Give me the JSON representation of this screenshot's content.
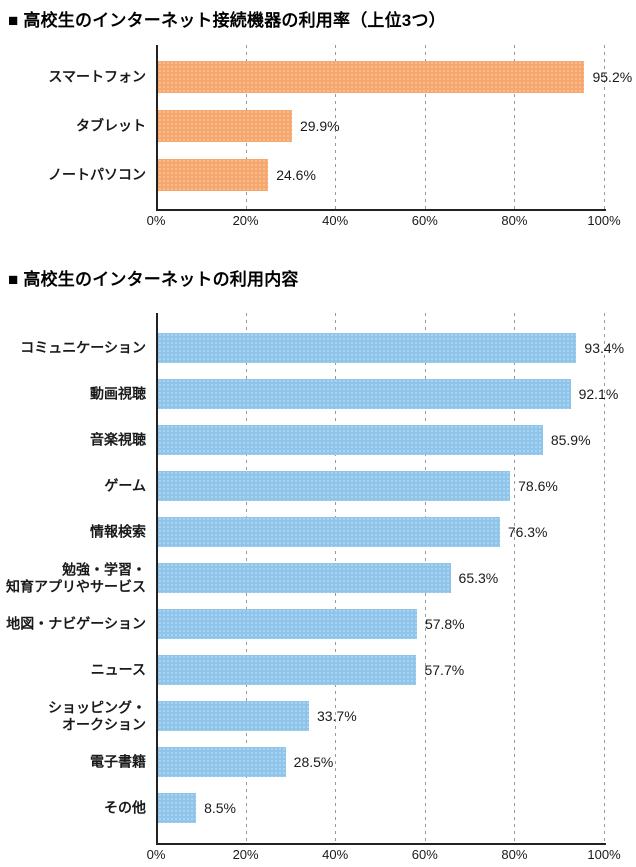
{
  "page": {
    "background": "#ffffff"
  },
  "chart_data": [
    {
      "type": "bar",
      "orientation": "horizontal",
      "title": "■ 高校生のインターネット接続機器の利用率（上位3つ）",
      "categories": [
        "スマートフォン",
        "タブレット",
        "ノートパソコン"
      ],
      "values": [
        95.2,
        29.9,
        24.6
      ],
      "value_labels": [
        "95.2%",
        "29.9%",
        "24.6%"
      ],
      "xlim": [
        0,
        100
      ],
      "xticks": [
        0,
        20,
        40,
        60,
        80,
        100
      ],
      "xtick_labels": [
        "0%",
        "20%",
        "40%",
        "60%",
        "80%",
        "100%"
      ],
      "grid": "dashed-vertical",
      "legend": "none",
      "bar_color": "#F6A76E",
      "axis_color": "#222222",
      "grid_color": "#999999",
      "text_color": "#1a1a1a"
    },
    {
      "type": "bar",
      "orientation": "horizontal",
      "title": "■ 高校生のインターネットの利用内容",
      "categories": [
        "コミュニケーション",
        "動画視聴",
        "音楽視聴",
        "ゲーム",
        "情報検索",
        "勉強・学習・\n知育アプリやサービス",
        "地図・ナビゲーション",
        "ニュース",
        "ショッピング・\nオークション",
        "電子書籍",
        "その他"
      ],
      "values": [
        93.4,
        92.1,
        85.9,
        78.6,
        76.3,
        65.3,
        57.8,
        57.7,
        33.7,
        28.5,
        8.5
      ],
      "value_labels": [
        "93.4%",
        "92.1%",
        "85.9%",
        "78.6%",
        "76.3%",
        "65.3%",
        "57.8%",
        "57.7%",
        "33.7%",
        "28.5%",
        "8.5%"
      ],
      "xlim": [
        0,
        100
      ],
      "xticks": [
        0,
        20,
        40,
        60,
        80,
        100
      ],
      "xtick_labels": [
        "0%",
        "20%",
        "40%",
        "60%",
        "80%",
        "100%"
      ],
      "grid": "dashed-vertical",
      "legend": "none",
      "bar_color": "#8FC5EA",
      "axis_color": "#222222",
      "grid_color": "#999999",
      "text_color": "#1a1a1a"
    }
  ]
}
